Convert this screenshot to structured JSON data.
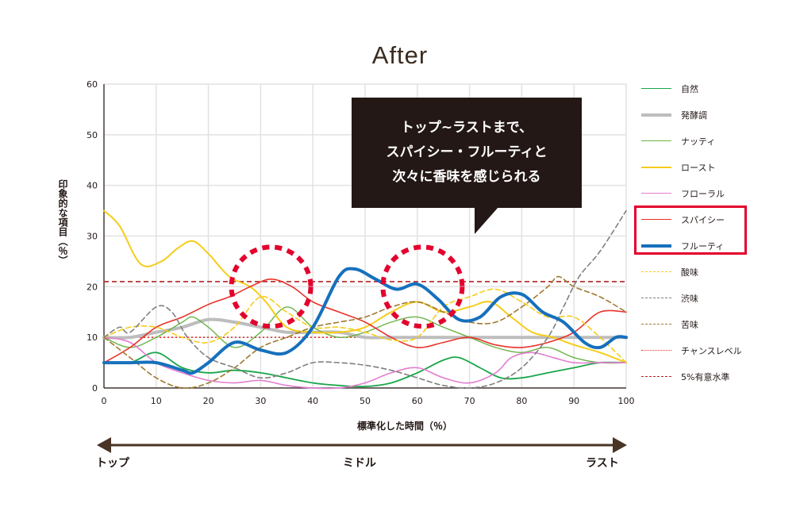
{
  "chart_data": {
    "type": "line",
    "title": "After",
    "xlabel": "標準化した時間（％）",
    "ylabel": "印象的な項目（％）",
    "xlim": [
      0,
      100
    ],
    "ylim": [
      0,
      60
    ],
    "x_ticks": [
      "0",
      "10",
      "20",
      "30",
      "40",
      "50",
      "60",
      "70",
      "80",
      "90",
      "100"
    ],
    "y_ticks": [
      "0",
      "10",
      "20",
      "30",
      "40",
      "50",
      "60"
    ],
    "grid": true,
    "series": [
      {
        "name": "自然",
        "color": "#1aa64a",
        "style": "solid",
        "width": 1.8,
        "points": [
          [
            0,
            5
          ],
          [
            5,
            5
          ],
          [
            10,
            7
          ],
          [
            15,
            4
          ],
          [
            20,
            3
          ],
          [
            25,
            3.5
          ],
          [
            30,
            3
          ],
          [
            35,
            2
          ],
          [
            40,
            1
          ],
          [
            45,
            0.5
          ],
          [
            50,
            0.3
          ],
          [
            55,
            1
          ],
          [
            60,
            3
          ],
          [
            65,
            5.5
          ],
          [
            68,
            6
          ],
          [
            72,
            4
          ],
          [
            76,
            2
          ],
          [
            80,
            2
          ],
          [
            85,
            3
          ],
          [
            90,
            4
          ],
          [
            95,
            5
          ],
          [
            100,
            5
          ]
        ]
      },
      {
        "name": "発酵調",
        "color": "#bdbdbd",
        "style": "solid",
        "width": 4,
        "points": [
          [
            0,
            10
          ],
          [
            5,
            10
          ],
          [
            10,
            11
          ],
          [
            15,
            12
          ],
          [
            20,
            13.5
          ],
          [
            25,
            13
          ],
          [
            30,
            12
          ],
          [
            35,
            11
          ],
          [
            40,
            11
          ],
          [
            45,
            11
          ],
          [
            50,
            10
          ],
          [
            55,
            10
          ],
          [
            60,
            10
          ],
          [
            65,
            10
          ],
          [
            70,
            10
          ],
          [
            75,
            10
          ],
          [
            80,
            10
          ],
          [
            85,
            10
          ],
          [
            90,
            10
          ],
          [
            95,
            10
          ],
          [
            100,
            10
          ]
        ]
      },
      {
        "name": "ナッティ",
        "color": "#6bb347",
        "style": "solid",
        "width": 1.4,
        "points": [
          [
            0,
            10
          ],
          [
            5,
            8
          ],
          [
            10,
            10
          ],
          [
            15,
            13
          ],
          [
            17,
            14
          ],
          [
            20,
            12
          ],
          [
            25,
            8
          ],
          [
            30,
            11
          ],
          [
            35,
            16
          ],
          [
            40,
            12
          ],
          [
            45,
            10
          ],
          [
            50,
            11
          ],
          [
            55,
            13
          ],
          [
            60,
            14
          ],
          [
            65,
            12
          ],
          [
            70,
            10
          ],
          [
            75,
            8
          ],
          [
            80,
            7
          ],
          [
            85,
            8
          ],
          [
            90,
            6
          ],
          [
            95,
            5
          ],
          [
            100,
            5
          ]
        ]
      },
      {
        "name": "ロースト",
        "color": "#f5cc1a",
        "style": "solid",
        "width": 2,
        "points": [
          [
            0,
            35
          ],
          [
            3,
            32
          ],
          [
            7,
            24.5
          ],
          [
            11,
            25
          ],
          [
            14,
            27.5
          ],
          [
            17,
            29
          ],
          [
            20,
            26.5
          ],
          [
            24,
            22
          ],
          [
            28,
            20
          ],
          [
            31,
            17
          ],
          [
            35,
            12
          ],
          [
            40,
            11
          ],
          [
            45,
            11
          ],
          [
            50,
            12
          ],
          [
            55,
            15
          ],
          [
            60,
            17
          ],
          [
            65,
            15
          ],
          [
            70,
            16
          ],
          [
            74,
            17
          ],
          [
            78,
            14
          ],
          [
            82,
            11
          ],
          [
            86,
            10
          ],
          [
            90,
            8.5
          ],
          [
            95,
            7
          ],
          [
            100,
            5
          ]
        ]
      },
      {
        "name": "フローラル",
        "color": "#e27ed1",
        "style": "solid",
        "width": 1.6,
        "points": [
          [
            0,
            10
          ],
          [
            5,
            9
          ],
          [
            10,
            5
          ],
          [
            15,
            3
          ],
          [
            20,
            1.5
          ],
          [
            25,
            1
          ],
          [
            30,
            1.5
          ],
          [
            35,
            0.5
          ],
          [
            40,
            0
          ],
          [
            45,
            0
          ],
          [
            50,
            1
          ],
          [
            55,
            3
          ],
          [
            60,
            4
          ],
          [
            65,
            2
          ],
          [
            70,
            1
          ],
          [
            75,
            3
          ],
          [
            78,
            6
          ],
          [
            82,
            7
          ],
          [
            86,
            6
          ],
          [
            90,
            5
          ],
          [
            95,
            5
          ],
          [
            100,
            5
          ]
        ]
      },
      {
        "name": "スパイシー",
        "color": "#e8322a",
        "style": "solid",
        "width": 1.6,
        "points": [
          [
            0,
            5
          ],
          [
            5,
            8
          ],
          [
            10,
            12
          ],
          [
            15,
            14
          ],
          [
            20,
            16.5
          ],
          [
            24,
            18
          ],
          [
            28,
            20
          ],
          [
            32,
            21.5
          ],
          [
            36,
            20
          ],
          [
            40,
            17
          ],
          [
            45,
            15
          ],
          [
            50,
            13
          ],
          [
            55,
            10
          ],
          [
            60,
            8
          ],
          [
            65,
            9
          ],
          [
            70,
            10
          ],
          [
            75,
            8.5
          ],
          [
            80,
            8
          ],
          [
            85,
            9
          ],
          [
            90,
            11
          ],
          [
            95,
            15
          ],
          [
            100,
            15
          ]
        ]
      },
      {
        "name": "フルーティ",
        "color": "#1670bd",
        "style": "solid",
        "width": 4,
        "points": [
          [
            0,
            5
          ],
          [
            5,
            5
          ],
          [
            10,
            5
          ],
          [
            15,
            3.5
          ],
          [
            17,
            3
          ],
          [
            20,
            5
          ],
          [
            25,
            9
          ],
          [
            30,
            7.5
          ],
          [
            35,
            7
          ],
          [
            40,
            12
          ],
          [
            45,
            22
          ],
          [
            48,
            23.5
          ],
          [
            52,
            21.5
          ],
          [
            56,
            19.5
          ],
          [
            60,
            20.5
          ],
          [
            64,
            17.5
          ],
          [
            68,
            13.5
          ],
          [
            72,
            14
          ],
          [
            76,
            18
          ],
          [
            80,
            18.5
          ],
          [
            84,
            15
          ],
          [
            88,
            13
          ],
          [
            92,
            9
          ],
          [
            95,
            8
          ],
          [
            98,
            10
          ],
          [
            100,
            10
          ]
        ]
      },
      {
        "name": "酸味",
        "color": "#f5cc1a",
        "style": "dashed",
        "width": 1.6,
        "points": [
          [
            0,
            10
          ],
          [
            5,
            12
          ],
          [
            10,
            12
          ],
          [
            15,
            10
          ],
          [
            20,
            9
          ],
          [
            25,
            12
          ],
          [
            30,
            18
          ],
          [
            35,
            15
          ],
          [
            40,
            12
          ],
          [
            45,
            12
          ],
          [
            50,
            11
          ],
          [
            55,
            9.5
          ],
          [
            60,
            10
          ],
          [
            65,
            16
          ],
          [
            70,
            18
          ],
          [
            75,
            19.5
          ],
          [
            80,
            17
          ],
          [
            85,
            14
          ],
          [
            90,
            14
          ],
          [
            95,
            10
          ],
          [
            100,
            5
          ]
        ]
      },
      {
        "name": "渋味",
        "color": "#808080",
        "style": "dashed",
        "width": 1.6,
        "points": [
          [
            0,
            10
          ],
          [
            3,
            12
          ],
          [
            5,
            11
          ],
          [
            10,
            16
          ],
          [
            13,
            15
          ],
          [
            16,
            10
          ],
          [
            20,
            6
          ],
          [
            25,
            4
          ],
          [
            30,
            2
          ],
          [
            35,
            3
          ],
          [
            40,
            5
          ],
          [
            45,
            5
          ],
          [
            50,
            4.5
          ],
          [
            55,
            3.5
          ],
          [
            60,
            2
          ],
          [
            65,
            0.5
          ],
          [
            70,
            0
          ],
          [
            75,
            1
          ],
          [
            80,
            4
          ],
          [
            85,
            10
          ],
          [
            88,
            16
          ],
          [
            91,
            22
          ],
          [
            95,
            27
          ],
          [
            100,
            35
          ]
        ]
      },
      {
        "name": "苦味",
        "color": "#a07830",
        "style": "dashed",
        "width": 1.6,
        "points": [
          [
            0,
            10
          ],
          [
            5,
            6
          ],
          [
            10,
            2
          ],
          [
            15,
            0
          ],
          [
            20,
            1
          ],
          [
            25,
            4
          ],
          [
            30,
            8
          ],
          [
            35,
            10
          ],
          [
            40,
            12
          ],
          [
            45,
            13
          ],
          [
            50,
            14
          ],
          [
            55,
            16
          ],
          [
            60,
            17
          ],
          [
            65,
            15
          ],
          [
            70,
            13
          ],
          [
            75,
            13
          ],
          [
            80,
            16
          ],
          [
            85,
            20
          ],
          [
            87,
            22
          ],
          [
            90,
            20
          ],
          [
            95,
            18
          ],
          [
            100,
            15
          ]
        ]
      }
    ],
    "threshold_lines": [
      {
        "name": "チャンスレベル",
        "value": 10,
        "color": "#e8322a",
        "style": "dotted"
      },
      {
        "name": "5%有意水準",
        "value": 21,
        "color": "#b22222",
        "style": "dashed"
      }
    ],
    "annotation": [
      "トップ~ラストまで、",
      "スパイシー・フルーティと",
      "次々に香味を感じられる"
    ],
    "highlights": [
      {
        "shape": "dashed-circle",
        "center": [
          32,
          20
        ],
        "color": "#e3002d"
      },
      {
        "shape": "dashed-circle",
        "center": [
          61,
          20
        ],
        "color": "#e3002d"
      }
    ],
    "timeline": {
      "start": "トップ",
      "middle": "ミドル",
      "end": "ラスト",
      "color": "#4a3426"
    }
  }
}
